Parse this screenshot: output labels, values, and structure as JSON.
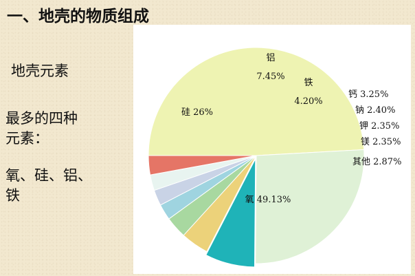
{
  "slide": {
    "title": "一、地壳的物质组成",
    "subtitle": "地壳元素",
    "desc_line1": "最多的四种",
    "desc_line2": "元素：",
    "answer_line1": "氧、硅、铝、",
    "answer_line2": "铁"
  },
  "chart_data": {
    "type": "pie",
    "title": "",
    "slices": [
      {
        "label": "氧",
        "pct_text": "49.13%",
        "value": 49.13,
        "color": "#eef3b2"
      },
      {
        "label": "硅",
        "pct_text": "26%",
        "value": 26.0,
        "color": "#dff1d6"
      },
      {
        "label": "铝",
        "pct_text": "7.45%",
        "value": 7.45,
        "color": "#1fb3b8"
      },
      {
        "label": "铁",
        "pct_text": "4.20%",
        "value": 4.2,
        "color": "#ecd27a"
      },
      {
        "label": "钙",
        "pct_text": "3.25%",
        "value": 3.25,
        "color": "#a8d8a0"
      },
      {
        "label": "钠",
        "pct_text": "2.40%",
        "value": 2.4,
        "color": "#9fd4e0"
      },
      {
        "label": "钾",
        "pct_text": "2.35%",
        "value": 2.35,
        "color": "#c9d3e6"
      },
      {
        "label": "镁",
        "pct_text": "2.35%",
        "value": 2.35,
        "color": "#e8f4f0"
      },
      {
        "label": "其他",
        "pct_text": "2.87%",
        "value": 2.87,
        "color": "#e57566"
      }
    ]
  }
}
